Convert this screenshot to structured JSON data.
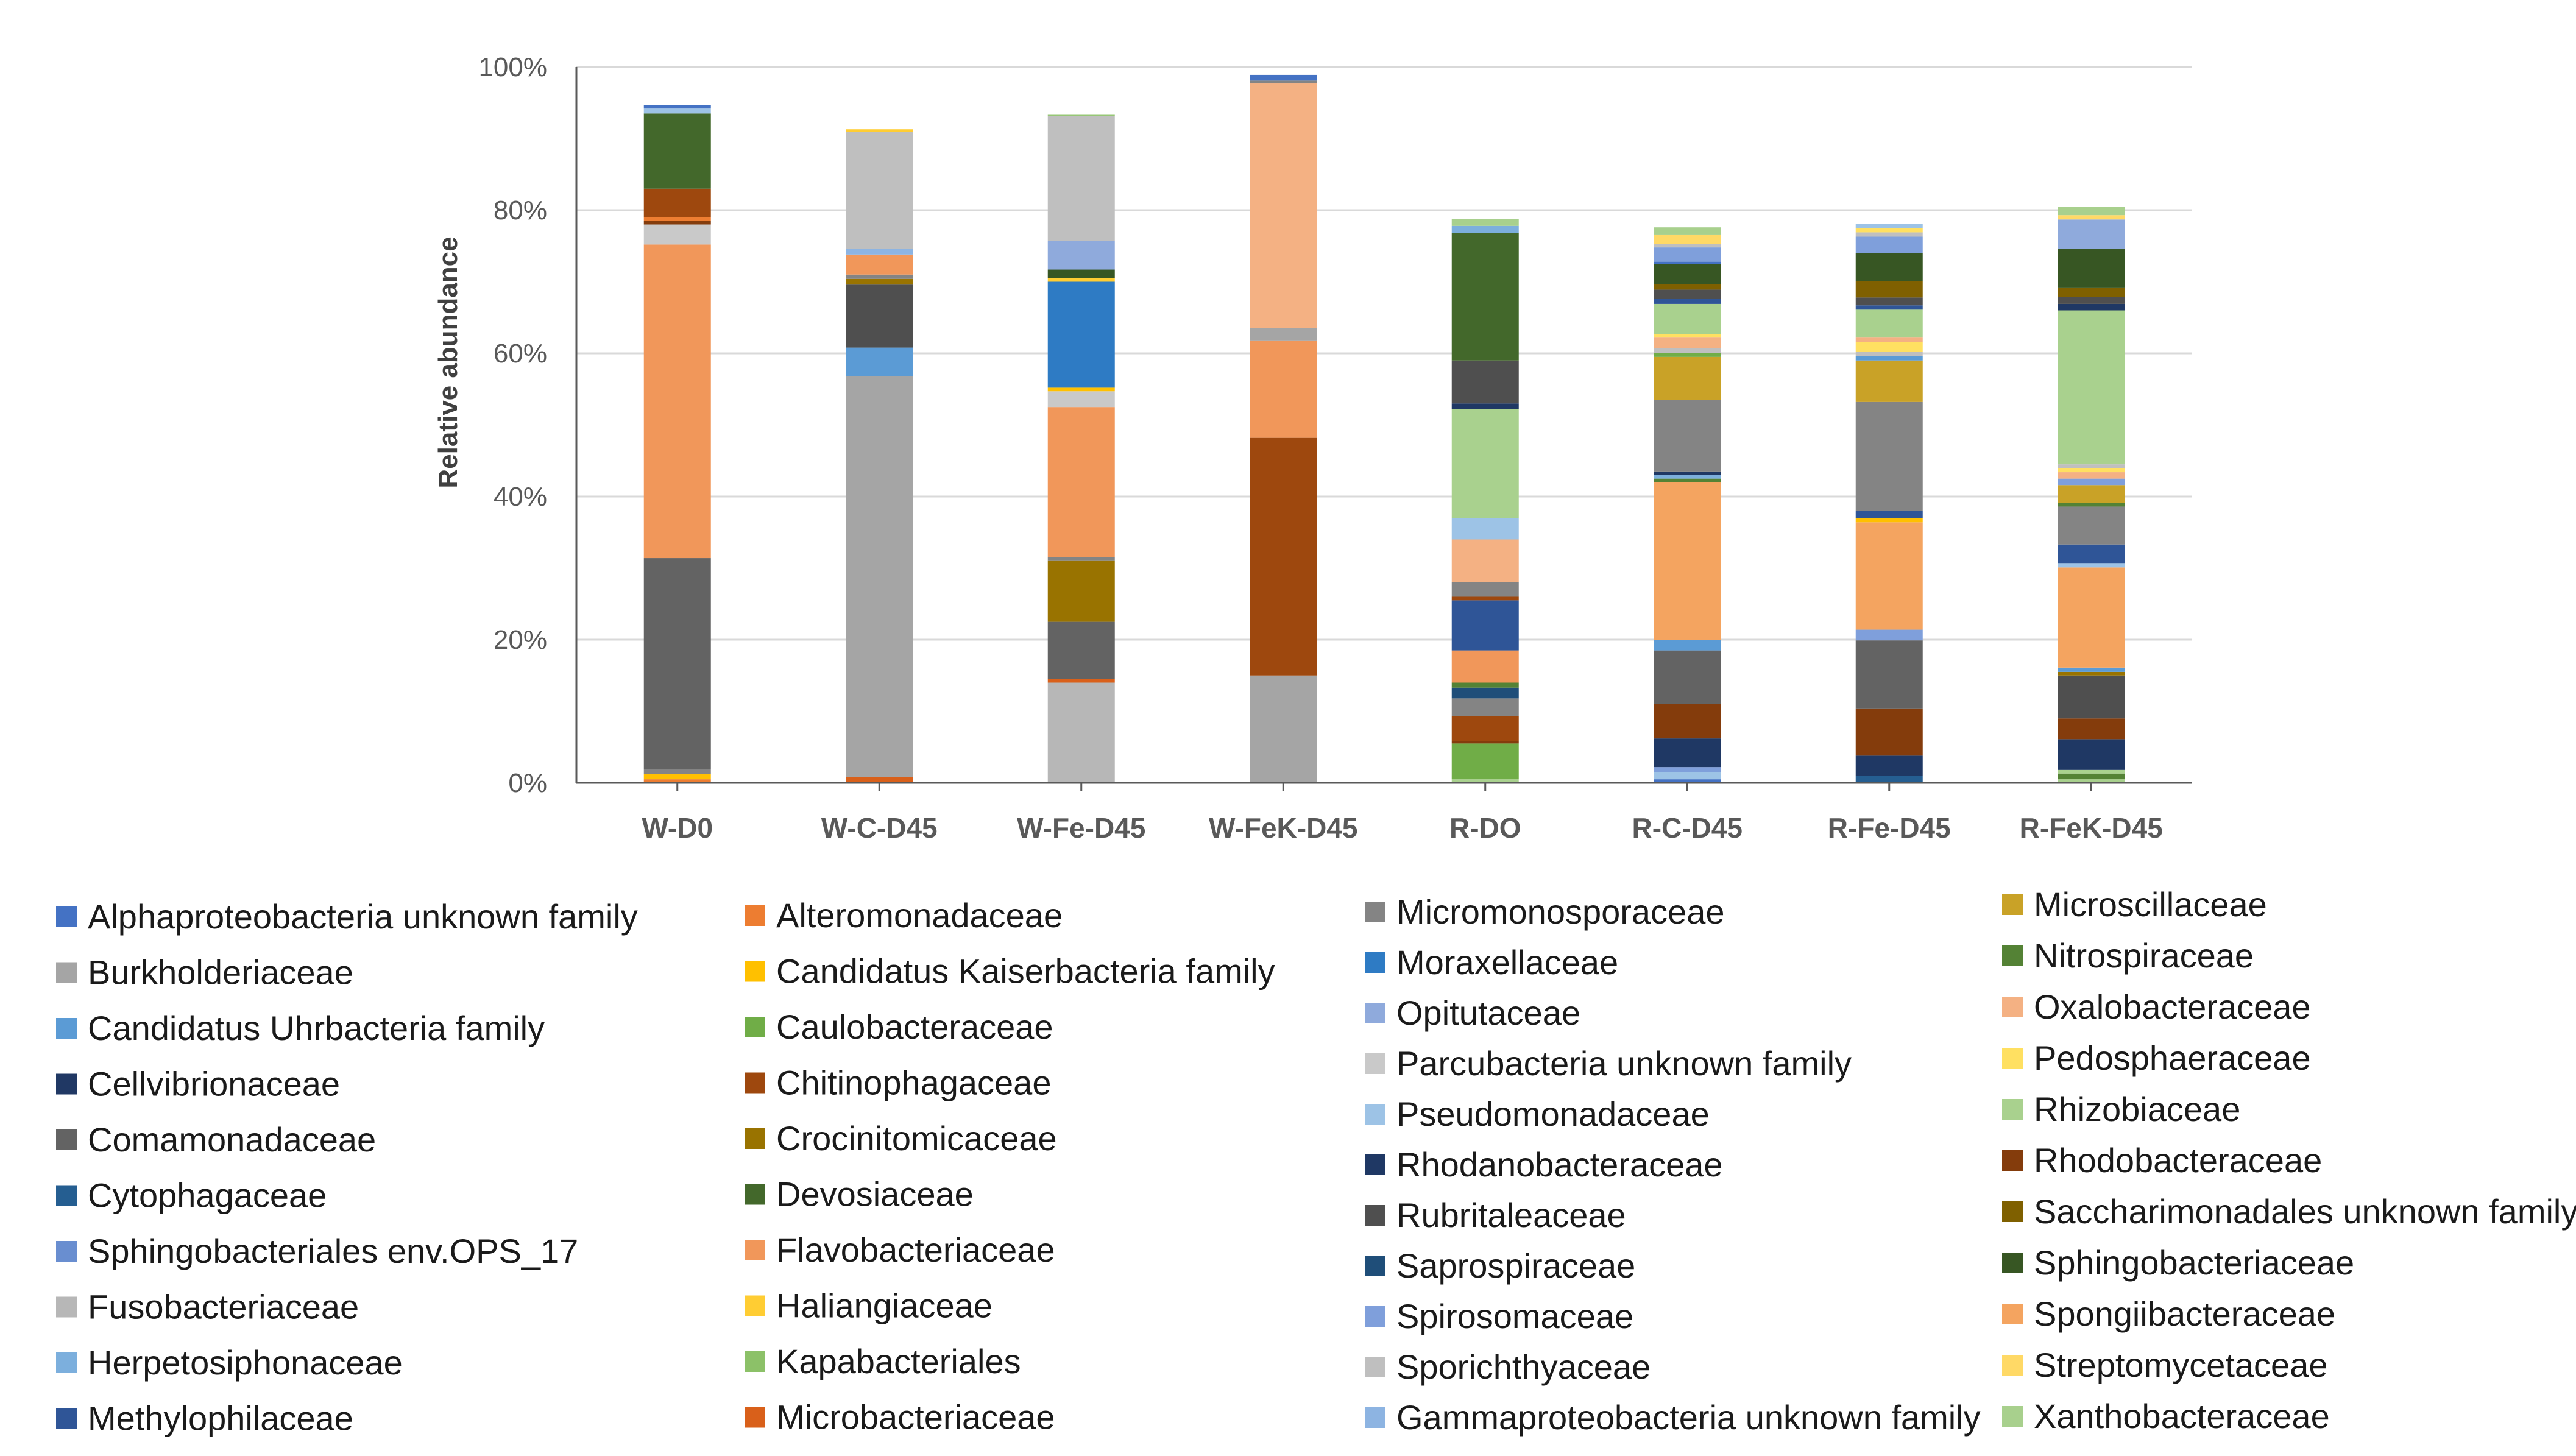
{
  "chart_data": {
    "type": "bar",
    "stacked": true,
    "title": "",
    "ylabel": "Relative abundance",
    "xlabel": "",
    "ylim": [
      0,
      100
    ],
    "yticks": [
      "0%",
      "20%",
      "40%",
      "60%",
      "80%",
      "100%"
    ],
    "categories": [
      "W-D0",
      "W-C-D45",
      "W-Fe-D45",
      "W-FeK-D45",
      "R-DO",
      "R-C-D45",
      "R-Fe-D45",
      "R-FeK-D45"
    ],
    "legend": [
      {
        "name": "Alphaproteobacteria unknown family",
        "color": "#4472C4"
      },
      {
        "name": "Burkholderiaceae",
        "color": "#A5A5A5"
      },
      {
        "name": "Candidatus Uhrbacteria family",
        "color": "#5B9BD5"
      },
      {
        "name": "Cellvibrionaceae",
        "color": "#203864"
      },
      {
        "name": "Comamonadaceae",
        "color": "#636363"
      },
      {
        "name": "Cytophagaceae",
        "color": "#255E91"
      },
      {
        "name": "Sphingobacteriales env.OPS_17",
        "color": "#698ED0"
      },
      {
        "name": "Fusobacteriaceae",
        "color": "#B7B7B7"
      },
      {
        "name": "Herpetosiphonaceae",
        "color": "#7CAFDD"
      },
      {
        "name": "Methylophilaceae",
        "color": "#2F5597"
      },
      {
        "name": "Alteromonadaceae",
        "color": "#ED7D31"
      },
      {
        "name": "Candidatus Kaiserbacteria family",
        "color": "#FFC000"
      },
      {
        "name": "Caulobacteraceae",
        "color": "#70AD47"
      },
      {
        "name": "Chitinophagaceae",
        "color": "#9E480E"
      },
      {
        "name": "Crocinitomicaceae",
        "color": "#997300"
      },
      {
        "name": "Devosiaceae",
        "color": "#43682B"
      },
      {
        "name": "Flavobacteriaceae",
        "color": "#F1975A"
      },
      {
        "name": "Haliangiaceae",
        "color": "#FFCD33"
      },
      {
        "name": "Kapabacteriales",
        "color": "#8CC168"
      },
      {
        "name": "Microbacteriaceae",
        "color": "#D9601A"
      },
      {
        "name": "Micromonosporaceae",
        "color": "#848484"
      },
      {
        "name": "Moraxellaceae",
        "color": "#2E7BC4"
      },
      {
        "name": "Opitutaceae",
        "color": "#8FAADC"
      },
      {
        "name": "Parcubacteria unknown family",
        "color": "#C9C9C9"
      },
      {
        "name": "Pseudomonadaceae",
        "color": "#9DC3E6"
      },
      {
        "name": "Rhodanobacteraceae",
        "color": "#1F3864"
      },
      {
        "name": "Rubritaleaceae",
        "color": "#4F4F4F"
      },
      {
        "name": "Saprospiraceae",
        "color": "#1F4E79"
      },
      {
        "name": "Spirosomaceae",
        "color": "#7F9FDB"
      },
      {
        "name": "Sporichthyaceae",
        "color": "#BFBFBF"
      },
      {
        "name": "Gammaproteobacteria unknown family",
        "color": "#8DB4E2"
      },
      {
        "name": "Microscillaceae",
        "color": "#C9A227"
      },
      {
        "name": "Nitrospiraceae",
        "color": "#548235"
      },
      {
        "name": "Oxalobacteraceae",
        "color": "#F4B183"
      },
      {
        "name": "Pedosphaeraceae",
        "color": "#FFE061"
      },
      {
        "name": "Rhizobiaceae",
        "color": "#A9D18E"
      },
      {
        "name": "Rhodobacteraceae",
        "color": "#843C0C"
      },
      {
        "name": "Saccharimonadales unknown family",
        "color": "#7F6000"
      },
      {
        "name": "Sphingobacteriaceae",
        "color": "#375623"
      },
      {
        "name": "Spongiibacteraceae",
        "color": "#F4A460"
      },
      {
        "name": "Streptomycetaceae",
        "color": "#FFD966"
      },
      {
        "name": "Xanthobacteraceae",
        "color": "#A8D08D"
      }
    ],
    "stacks": [
      {
        "category": "W-D0",
        "segments": [
          {
            "family": "Alteromonadaceae",
            "value": 0.5
          },
          {
            "family": "Candidatus Kaiserbacteria family",
            "value": 0.7
          },
          {
            "family": "Micromonosporaceae",
            "value": 0.7
          },
          {
            "family": "Comamonadaceae",
            "value": 29.5
          },
          {
            "family": "Flavobacteriaceae",
            "value": 43.8
          },
          {
            "family": "Parcubacteria unknown family",
            "value": 2.8
          },
          {
            "family": "Rhodobacteraceae",
            "value": 0.5
          },
          {
            "family": "Alteromonadaceae",
            "value": 0.5
          },
          {
            "family": "Chitinophagaceae",
            "value": 4.0
          },
          {
            "family": "Devosiaceae",
            "value": 10.5
          },
          {
            "family": "Pseudomonadaceae",
            "value": 0.7
          },
          {
            "family": "Alphaproteobacteria unknown family",
            "value": 0.5
          }
        ]
      },
      {
        "category": "W-C-D45",
        "segments": [
          {
            "family": "Microbacteriaceae",
            "value": 0.8
          },
          {
            "family": "Burkholderiaceae",
            "value": 56.0
          },
          {
            "family": "Candidatus Uhrbacteria family",
            "value": 4.0
          },
          {
            "family": "Rubritaleaceae",
            "value": 8.8
          },
          {
            "family": "Crocinitomicaceae",
            "value": 0.8
          },
          {
            "family": "Micromonosporaceae",
            "value": 0.6
          },
          {
            "family": "Flavobacteriaceae",
            "value": 2.8
          },
          {
            "family": "Gammaproteobacteria unknown family",
            "value": 0.8
          },
          {
            "family": "Sporichthyaceae",
            "value": 16.3
          },
          {
            "family": "Haliangiaceae",
            "value": 0.4
          }
        ]
      },
      {
        "category": "W-Fe-D45",
        "segments": [
          {
            "family": "Fusobacteriaceae",
            "value": 14.0
          },
          {
            "family": "Microbacteriaceae",
            "value": 0.5
          },
          {
            "family": "Comamonadaceae",
            "value": 8.0
          },
          {
            "family": "Crocinitomicaceae",
            "value": 8.5
          },
          {
            "family": "Micromonosporaceae",
            "value": 0.5
          },
          {
            "family": "Flavobacteriaceae",
            "value": 21.0
          },
          {
            "family": "Parcubacteria unknown family",
            "value": 2.2
          },
          {
            "family": "Candidatus Kaiserbacteria family",
            "value": 0.5
          },
          {
            "family": "Moraxellaceae",
            "value": 14.8
          },
          {
            "family": "Haliangiaceae",
            "value": 0.5
          },
          {
            "family": "Sphingobacteriaceae",
            "value": 1.2
          },
          {
            "family": "Opitutaceae",
            "value": 4.0
          },
          {
            "family": "Sporichthyaceae",
            "value": 17.5
          },
          {
            "family": "Kapabacteriales",
            "value": 0.2
          }
        ]
      },
      {
        "category": "W-FeK-D45",
        "segments": [
          {
            "family": "Burkholderiaceae",
            "value": 15.0
          },
          {
            "family": "Chitinophagaceae",
            "value": 33.2
          },
          {
            "family": "Flavobacteriaceae",
            "value": 13.6
          },
          {
            "family": "Burkholderiaceae",
            "value": 1.7
          },
          {
            "family": "Oxalobacteraceae",
            "value": 34.2
          },
          {
            "family": "Micromonosporaceae",
            "value": 0.4
          },
          {
            "family": "Alphaproteobacteria unknown family",
            "value": 0.8
          }
        ]
      },
      {
        "category": "R-DO",
        "segments": [
          {
            "family": "Rhizobiaceae",
            "value": 0.5
          },
          {
            "family": "Caulobacteraceae",
            "value": 5.0
          },
          {
            "family": "Rhodobacteraceae",
            "value": 0.3
          },
          {
            "family": "Chitinophagaceae",
            "value": 3.5
          },
          {
            "family": "Micromonosporaceae",
            "value": 2.5
          },
          {
            "family": "Saprospiraceae",
            "value": 1.5
          },
          {
            "family": "Nitrospiraceae",
            "value": 0.7
          },
          {
            "family": "Flavobacteriaceae",
            "value": 4.5
          },
          {
            "family": "Methylophilaceae",
            "value": 7.0
          },
          {
            "family": "Chitinophagaceae",
            "value": 0.5
          },
          {
            "family": "Micromonosporaceae",
            "value": 2.0
          },
          {
            "family": "Oxalobacteraceae",
            "value": 6.0
          },
          {
            "family": "Pseudomonadaceae",
            "value": 3.0
          },
          {
            "family": "Rhizobiaceae",
            "value": 15.2
          },
          {
            "family": "Rhodanobacteraceae",
            "value": 0.8
          },
          {
            "family": "Rubritaleaceae",
            "value": 6.0
          },
          {
            "family": "Devosiaceae",
            "value": 17.8
          },
          {
            "family": "Herpetosiphonaceae",
            "value": 1.0
          },
          {
            "family": "Xanthobacteraceae",
            "value": 1.0
          }
        ]
      },
      {
        "category": "R-C-D45",
        "segments": [
          {
            "family": "Alphaproteobacteria unknown family",
            "value": 0.5
          },
          {
            "family": "Pseudomonadaceae",
            "value": 1.0
          },
          {
            "family": "Spirosomaceae",
            "value": 0.7
          },
          {
            "family": "Rhodanobacteraceae",
            "value": 4.0
          },
          {
            "family": "Rhodobacteraceae",
            "value": 4.8
          },
          {
            "family": "Comamonadaceae",
            "value": 7.5
          },
          {
            "family": "Candidatus Uhrbacteria family",
            "value": 1.5
          },
          {
            "family": "Spongiibacteraceae",
            "value": 22.0
          },
          {
            "family": "Nitrospiraceae",
            "value": 0.5
          },
          {
            "family": "Herpetosiphonaceae",
            "value": 0.5
          },
          {
            "family": "Rhodanobacteraceae",
            "value": 0.5
          },
          {
            "family": "Micromonosporaceae",
            "value": 10.0
          },
          {
            "family": "Microscillaceae",
            "value": 6.0
          },
          {
            "family": "Caulobacteraceae",
            "value": 0.5
          },
          {
            "family": "Sporichthyaceae",
            "value": 0.7
          },
          {
            "family": "Oxalobacteraceae",
            "value": 1.5
          },
          {
            "family": "Pedosphaeraceae",
            "value": 0.5
          },
          {
            "family": "Rhizobiaceae",
            "value": 4.2
          },
          {
            "family": "Methylophilaceae",
            "value": 0.7
          },
          {
            "family": "Rubritaleaceae",
            "value": 1.3
          },
          {
            "family": "Saccharimonadales unknown family",
            "value": 0.8
          },
          {
            "family": "Sphingobacteriaceae",
            "value": 2.8
          },
          {
            "family": "Alphaproteobacteria unknown family",
            "value": 0.3
          },
          {
            "family": "Spirosomaceae",
            "value": 2.0
          },
          {
            "family": "Sporichthyaceae",
            "value": 0.5
          },
          {
            "family": "Streptomycetaceae",
            "value": 1.3
          },
          {
            "family": "Xanthobacteraceae",
            "value": 1.0
          }
        ]
      },
      {
        "category": "R-Fe-D45",
        "segments": [
          {
            "family": "Cytophagaceae",
            "value": 1.0
          },
          {
            "family": "Rhodanobacteraceae",
            "value": 2.8
          },
          {
            "family": "Rhodobacteraceae",
            "value": 6.6
          },
          {
            "family": "Comamonadaceae",
            "value": 9.5
          },
          {
            "family": "Spirosomaceae",
            "value": 1.5
          },
          {
            "family": "Spongiibacteraceae",
            "value": 15.0
          },
          {
            "family": "Candidatus Kaiserbacteria family",
            "value": 0.6
          },
          {
            "family": "Methylophilaceae",
            "value": 1.0
          },
          {
            "family": "Micromonosporaceae",
            "value": 15.2
          },
          {
            "family": "Microscillaceae",
            "value": 5.8
          },
          {
            "family": "Candidatus Uhrbacteria family",
            "value": 0.6
          },
          {
            "family": "Sporichthyaceae",
            "value": 0.6
          },
          {
            "family": "Pedosphaeraceae",
            "value": 1.4
          },
          {
            "family": "Oxalobacteraceae",
            "value": 0.6
          },
          {
            "family": "Rhizobiaceae",
            "value": 3.9
          },
          {
            "family": "Methylophilaceae",
            "value": 0.6
          },
          {
            "family": "Rubritaleaceae",
            "value": 1.1
          },
          {
            "family": "Saccharimonadales unknown family",
            "value": 2.3
          },
          {
            "family": "Sphingobacteriaceae",
            "value": 3.9
          },
          {
            "family": "Spirosomaceae",
            "value": 2.3
          },
          {
            "family": "Sporichthyaceae",
            "value": 0.6
          },
          {
            "family": "Pedosphaeraceae",
            "value": 0.6
          },
          {
            "family": "Pseudomonadaceae",
            "value": 0.6
          }
        ]
      },
      {
        "category": "R-FeK-D45",
        "segments": [
          {
            "family": "Xanthobacteraceae",
            "value": 0.5
          },
          {
            "family": "Nitrospiraceae",
            "value": 0.8
          },
          {
            "family": "Rhizobiaceae",
            "value": 0.5
          },
          {
            "family": "Rhodanobacteraceae",
            "value": 4.3
          },
          {
            "family": "Rhodobacteraceae",
            "value": 2.9
          },
          {
            "family": "Rubritaleaceae",
            "value": 6.0
          },
          {
            "family": "Crocinitomicaceae",
            "value": 0.5
          },
          {
            "family": "Candidatus Uhrbacteria family",
            "value": 0.6
          },
          {
            "family": "Spongiibacteraceae",
            "value": 14.0
          },
          {
            "family": "Pseudomonadaceae",
            "value": 0.6
          },
          {
            "family": "Methylophilaceae",
            "value": 2.6
          },
          {
            "family": "Micromonosporaceae",
            "value": 5.3
          },
          {
            "family": "Nitrospiraceae",
            "value": 0.5
          },
          {
            "family": "Microscillaceae",
            "value": 2.5
          },
          {
            "family": "Spirosomaceae",
            "value": 0.9
          },
          {
            "family": "Oxalobacteraceae",
            "value": 0.9
          },
          {
            "family": "Pedosphaeraceae",
            "value": 0.6
          },
          {
            "family": "Sporichthyaceae",
            "value": 0.5
          },
          {
            "family": "Rhizobiaceae",
            "value": 21.5
          },
          {
            "family": "Rhodanobacteraceae",
            "value": 0.9
          },
          {
            "family": "Rubritaleaceae",
            "value": 1.0
          },
          {
            "family": "Saccharimonadales unknown family",
            "value": 1.3
          },
          {
            "family": "Sphingobacteriaceae",
            "value": 5.4
          },
          {
            "family": "Opitutaceae",
            "value": 4.1
          },
          {
            "family": "Streptomycetaceae",
            "value": 0.6
          },
          {
            "family": "Xanthobacteraceae",
            "value": 1.2
          }
        ]
      }
    ]
  }
}
